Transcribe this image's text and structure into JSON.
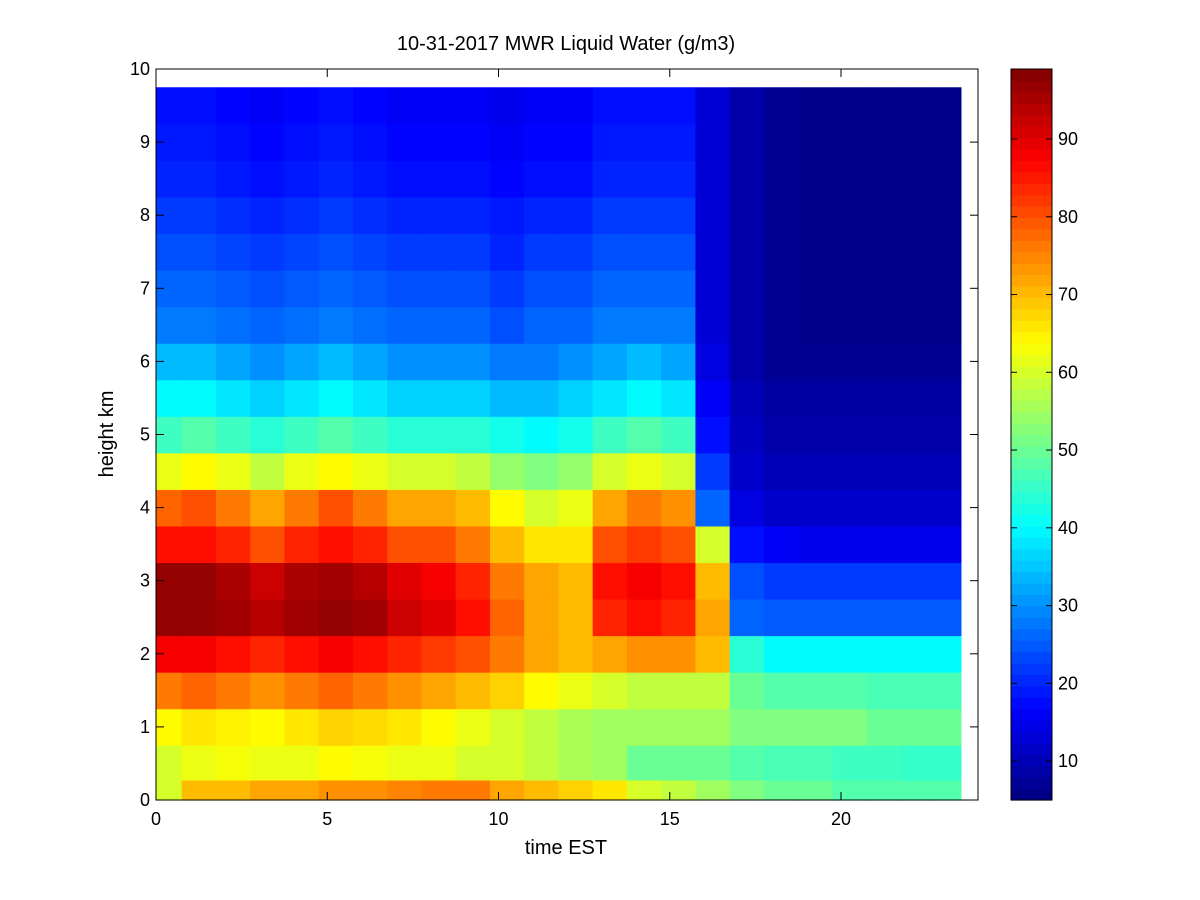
{
  "chart_data": {
    "type": "heatmap",
    "title": "10-31-2017 MWR Liquid Water (g/m3)",
    "xlabel": "time EST",
    "ylabel": "height km",
    "xlim": [
      0,
      24
    ],
    "ylim": [
      0,
      10
    ],
    "x_ticks": [
      "0",
      "5",
      "10",
      "15",
      "20"
    ],
    "y_ticks": [
      "0",
      "1",
      "2",
      "3",
      "4",
      "5",
      "6",
      "7",
      "8",
      "9",
      "10"
    ],
    "colorbar": {
      "colormap": "jet",
      "range": [
        5,
        99
      ],
      "ticks": [
        "10",
        "20",
        "30",
        "40",
        "50",
        "60",
        "70",
        "80",
        "90"
      ]
    },
    "x": [
      0.25,
      1.25,
      2.25,
      3.25,
      4.25,
      5.25,
      6.25,
      7.25,
      8.25,
      9.25,
      10.25,
      11.25,
      12.25,
      13.25,
      14.25,
      15.25,
      16.25,
      17.25,
      18.25,
      19.25,
      20.25,
      21.25,
      22.25,
      23.25
    ],
    "y": [
      0.05,
      0.5,
      1.0,
      1.5,
      2.0,
      2.5,
      3.0,
      3.5,
      4.0,
      4.5,
      5.0,
      5.5,
      6.0,
      6.5,
      7.0,
      7.5,
      8.0,
      8.5,
      9.0,
      9.5
    ],
    "z": [
      [
        60,
        70,
        70,
        72,
        72,
        74,
        74,
        75,
        76,
        76,
        72,
        70,
        68,
        66,
        60,
        58,
        55,
        52,
        50,
        50,
        48,
        48,
        48,
        48
      ],
      [
        60,
        62,
        63,
        62,
        62,
        64,
        63,
        62,
        62,
        60,
        60,
        58,
        56,
        55,
        50,
        50,
        50,
        48,
        47,
        47,
        46,
        46,
        45,
        45
      ],
      [
        64,
        66,
        65,
        64,
        66,
        68,
        67,
        66,
        64,
        62,
        60,
        58,
        56,
        55,
        55,
        55,
        55,
        52,
        52,
        52,
        52,
        50,
        50,
        50
      ],
      [
        76,
        78,
        76,
        74,
        76,
        78,
        76,
        74,
        72,
        70,
        68,
        64,
        62,
        60,
        58,
        58,
        58,
        50,
        48,
        48,
        48,
        47,
        47,
        47
      ],
      [
        88,
        88,
        86,
        84,
        86,
        88,
        86,
        84,
        82,
        80,
        76,
        72,
        70,
        72,
        74,
        74,
        70,
        44,
        40,
        40,
        40,
        40,
        40,
        40
      ],
      [
        97,
        97,
        96,
        94,
        96,
        97,
        96,
        92,
        90,
        86,
        78,
        72,
        70,
        84,
        86,
        84,
        72,
        26,
        25,
        25,
        25,
        25,
        25,
        25
      ],
      [
        97,
        97,
        95,
        92,
        95,
        96,
        94,
        90,
        88,
        84,
        76,
        72,
        70,
        86,
        88,
        86,
        70,
        24,
        22,
        22,
        22,
        22,
        22,
        22
      ],
      [
        86,
        86,
        84,
        80,
        84,
        86,
        84,
        80,
        80,
        76,
        70,
        66,
        66,
        80,
        82,
        80,
        60,
        18,
        16,
        15,
        15,
        15,
        15,
        15
      ],
      [
        78,
        80,
        76,
        72,
        76,
        80,
        76,
        72,
        72,
        70,
        64,
        60,
        62,
        72,
        76,
        74,
        26,
        14,
        12,
        12,
        12,
        12,
        12,
        12
      ],
      [
        62,
        64,
        62,
        58,
        62,
        64,
        62,
        60,
        60,
        58,
        54,
        52,
        54,
        60,
        62,
        60,
        22,
        12,
        10,
        10,
        10,
        10,
        10,
        10
      ],
      [
        46,
        48,
        46,
        44,
        46,
        48,
        46,
        44,
        44,
        44,
        42,
        40,
        42,
        46,
        48,
        46,
        18,
        11,
        9,
        9,
        9,
        9,
        9,
        9
      ],
      [
        40,
        40,
        38,
        36,
        38,
        40,
        38,
        36,
        36,
        36,
        34,
        34,
        36,
        38,
        40,
        38,
        16,
        10,
        8,
        8,
        8,
        8,
        8,
        8
      ],
      [
        34,
        34,
        32,
        30,
        32,
        34,
        32,
        30,
        30,
        30,
        28,
        28,
        30,
        32,
        34,
        32,
        14,
        9,
        7,
        7,
        7,
        7,
        7,
        7
      ],
      [
        28,
        28,
        27,
        26,
        27,
        28,
        27,
        26,
        26,
        26,
        24,
        26,
        26,
        28,
        28,
        28,
        13,
        9,
        7,
        6,
        6,
        6,
        6,
        6
      ],
      [
        26,
        26,
        25,
        24,
        25,
        26,
        25,
        24,
        24,
        24,
        22,
        24,
        24,
        26,
        26,
        26,
        13,
        9,
        7,
        6,
        6,
        6,
        6,
        6
      ],
      [
        24,
        24,
        23,
        22,
        23,
        24,
        23,
        22,
        22,
        22,
        20,
        22,
        22,
        24,
        24,
        24,
        13,
        9,
        7,
        6,
        6,
        6,
        6,
        6
      ],
      [
        22,
        22,
        21,
        20,
        21,
        22,
        21,
        20,
        20,
        20,
        19,
        20,
        20,
        22,
        22,
        22,
        13,
        9,
        7,
        6,
        6,
        6,
        6,
        6
      ],
      [
        20,
        20,
        19,
        18,
        19,
        20,
        19,
        18,
        18,
        18,
        17,
        18,
        18,
        20,
        20,
        20,
        13,
        9,
        7,
        6,
        6,
        6,
        6,
        6
      ],
      [
        19,
        19,
        18,
        17,
        18,
        19,
        18,
        17,
        17,
        17,
        16,
        17,
        17,
        19,
        19,
        19,
        13,
        9,
        7,
        6,
        6,
        6,
        6,
        6
      ],
      [
        18,
        18,
        17,
        16,
        17,
        18,
        17,
        16,
        16,
        16,
        15,
        16,
        16,
        18,
        18,
        18,
        13,
        9,
        7,
        6,
        6,
        6,
        6,
        6
      ]
    ]
  }
}
